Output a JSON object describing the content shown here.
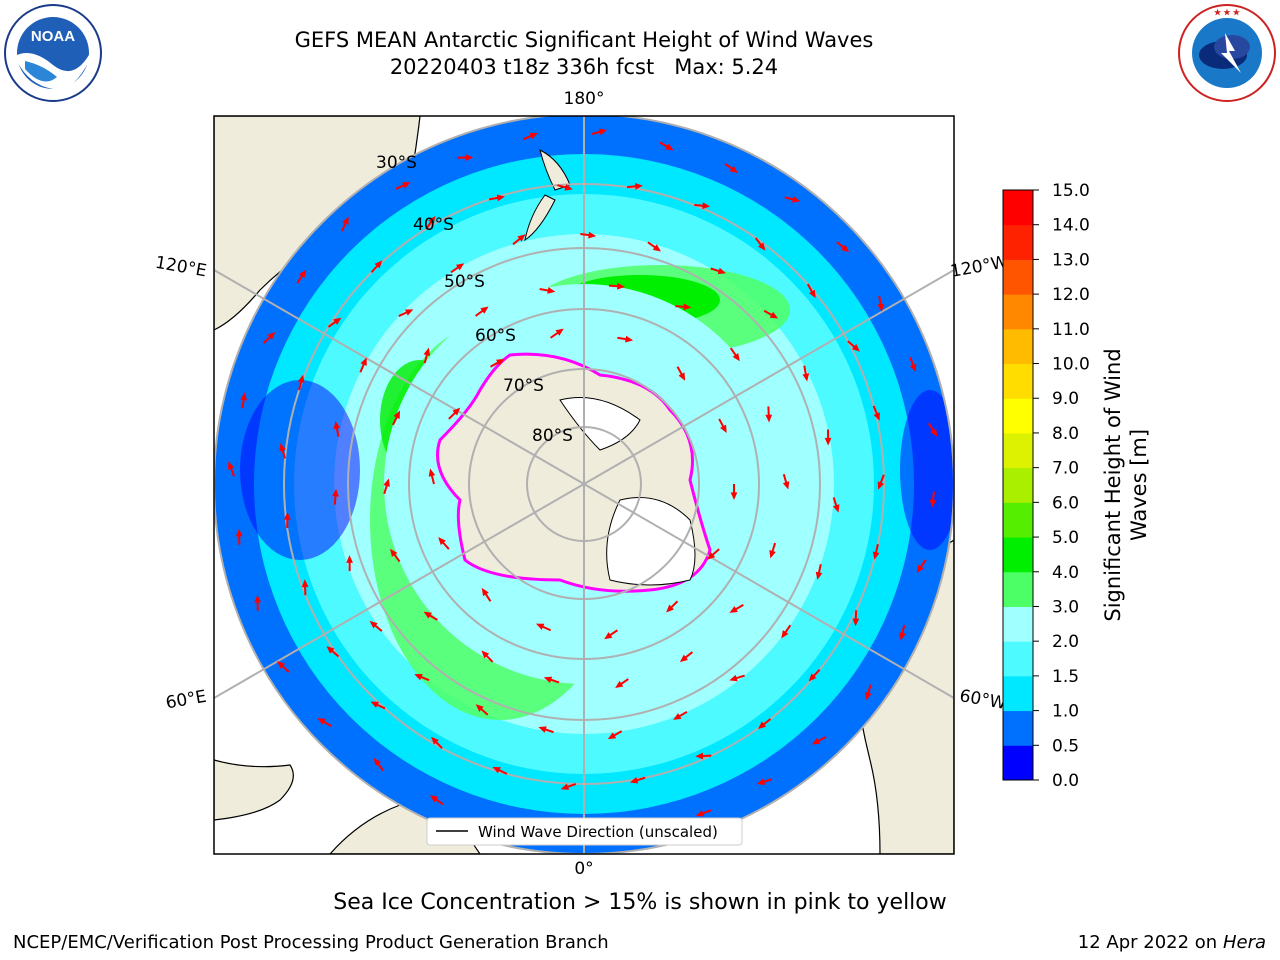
{
  "title": {
    "line1": "GEFS MEAN Antarctic Significant Height of Wind Waves",
    "line2": "20220403 t18z 336h fcst   Max: 5.24"
  },
  "logos": {
    "left": {
      "icon": "noaa-logo",
      "text": "NOAA",
      "ring_text": "NATIONAL OCEANIC AND ATMOSPHERIC ADMINISTRATION · U.S. DEPARTMENT OF COMMERCE"
    },
    "right": {
      "icon": "nws-logo",
      "ring_text": "NATIONAL WEATHER SERVICE"
    }
  },
  "map": {
    "projection": "south-polar-stereographic",
    "longitude_labels": {
      "top": "180°",
      "bottom": "0°",
      "upper_left": "120°E",
      "upper_right": "120°W",
      "lower_left": "60°E",
      "lower_right": "60°W"
    },
    "latitude_labels": [
      "30°S",
      "40°S",
      "50°S",
      "60°S",
      "70°S",
      "80°S"
    ],
    "legend_label": "Wind Wave Direction (unscaled)",
    "land_color": "#efecdc",
    "arrow_color": "#ff0000",
    "ice_colors": [
      "#ff00ff",
      "#ffcc33"
    ]
  },
  "colorbar": {
    "label_line1": "Significant Height of Wind",
    "label_line2": "Waves [m]",
    "ticks": [
      "0.0",
      "0.5",
      "1.0",
      "1.5",
      "2.0",
      "3.0",
      "4.0",
      "5.0",
      "6.0",
      "7.0",
      "8.0",
      "9.0",
      "10.0",
      "11.0",
      "12.0",
      "13.0",
      "14.0",
      "15.0"
    ],
    "colors": [
      "#0000ff",
      "#0070ff",
      "#00e8ff",
      "#4dfaff",
      "#a0ffff",
      "#4dff66",
      "#00ee00",
      "#55ee00",
      "#aaee00",
      "#ddf200",
      "#ffff00",
      "#ffdd00",
      "#ffbb00",
      "#ff8800",
      "#ff5500",
      "#ff2200",
      "#ff0000"
    ]
  },
  "caption": "Sea Ice Concentration > 15% is shown in pink to yellow",
  "footer": {
    "left": "NCEP/EMC/Verification Post Processing Product Generation Branch",
    "right_prefix": "12 Apr 2022 on ",
    "right_host": "Hera"
  }
}
